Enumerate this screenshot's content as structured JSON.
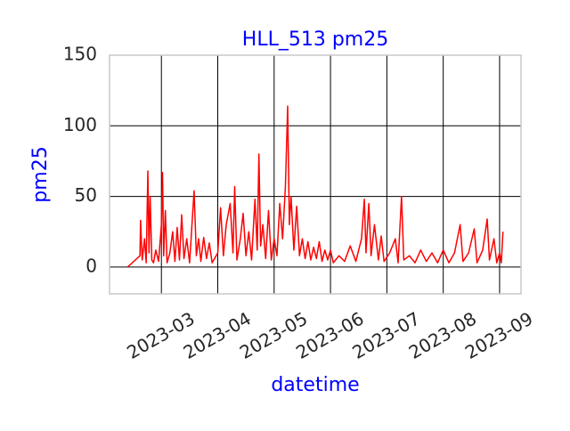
{
  "chart_data": {
    "type": "line",
    "title": "HLL_513 pm25",
    "xlabel": "datetime",
    "ylabel": "pm25",
    "xlim": [
      2.08,
      9.38
    ],
    "xticks": [
      {
        "value": 3,
        "label": "2023-03"
      },
      {
        "value": 4,
        "label": "2023-04"
      },
      {
        "value": 5,
        "label": "2023-05"
      },
      {
        "value": 6,
        "label": "2023-06"
      },
      {
        "value": 7,
        "label": "2023-07"
      },
      {
        "value": 8,
        "label": "2023-08"
      },
      {
        "value": 9,
        "label": "2023-09"
      }
    ],
    "ylim": [
      -19,
      150
    ],
    "yticks": [
      0,
      50,
      100,
      150
    ],
    "grid": true,
    "series": [
      {
        "name": "pm25",
        "color": "#ff0000",
        "x": [
          2.4,
          2.62,
          2.63,
          2.66,
          2.7,
          2.73,
          2.76,
          2.78,
          2.8,
          2.83,
          2.86,
          2.9,
          2.95,
          3.0,
          3.02,
          3.04,
          3.07,
          3.1,
          3.15,
          3.2,
          3.24,
          3.28,
          3.32,
          3.36,
          3.4,
          3.45,
          3.5,
          3.55,
          3.58,
          3.62,
          3.66,
          3.7,
          3.75,
          3.8,
          3.85,
          3.9,
          4.0,
          4.05,
          4.1,
          4.15,
          4.22,
          4.27,
          4.3,
          4.34,
          4.4,
          4.45,
          4.5,
          4.55,
          4.6,
          4.66,
          4.7,
          4.73,
          4.76,
          4.8,
          4.85,
          4.9,
          4.95,
          5.0,
          5.05,
          5.1,
          5.15,
          5.2,
          5.24,
          5.27,
          5.3,
          5.35,
          5.4,
          5.45,
          5.5,
          5.55,
          5.6,
          5.65,
          5.7,
          5.75,
          5.8,
          5.85,
          5.9,
          5.95,
          6.0,
          6.05,
          6.15,
          6.25,
          6.35,
          6.45,
          6.55,
          6.6,
          6.63,
          6.68,
          6.72,
          6.78,
          6.85,
          6.9,
          6.95,
          7.05,
          7.15,
          7.2,
          7.26,
          7.3,
          7.4,
          7.5,
          7.6,
          7.7,
          7.8,
          7.9,
          8.0,
          8.1,
          8.2,
          8.3,
          8.35,
          8.45,
          8.55,
          8.6,
          8.7,
          8.78,
          8.82,
          8.9,
          8.95,
          9.0,
          9.03,
          9.06
        ],
        "values": [
          0,
          8,
          33,
          5,
          20,
          3,
          68,
          10,
          50,
          5,
          3,
          12,
          4,
          30,
          67,
          8,
          40,
          3,
          10,
          25,
          4,
          28,
          5,
          37,
          6,
          20,
          3,
          35,
          54,
          8,
          20,
          4,
          21,
          6,
          17,
          3,
          10,
          42,
          8,
          30,
          45,
          10,
          57,
          5,
          20,
          38,
          8,
          25,
          5,
          48,
          12,
          80,
          15,
          30,
          6,
          40,
          5,
          20,
          8,
          45,
          20,
          57,
          114,
          30,
          50,
          12,
          43,
          8,
          20,
          6,
          18,
          5,
          14,
          6,
          18,
          4,
          12,
          5,
          12,
          3,
          8,
          4,
          15,
          4,
          20,
          48,
          10,
          45,
          8,
          30,
          5,
          22,
          4,
          10,
          20,
          3,
          50,
          5,
          8,
          3,
          12,
          4,
          10,
          3,
          12,
          3,
          10,
          30,
          4,
          10,
          27,
          3,
          12,
          34,
          5,
          20,
          3,
          10,
          3,
          25
        ]
      }
    ]
  }
}
